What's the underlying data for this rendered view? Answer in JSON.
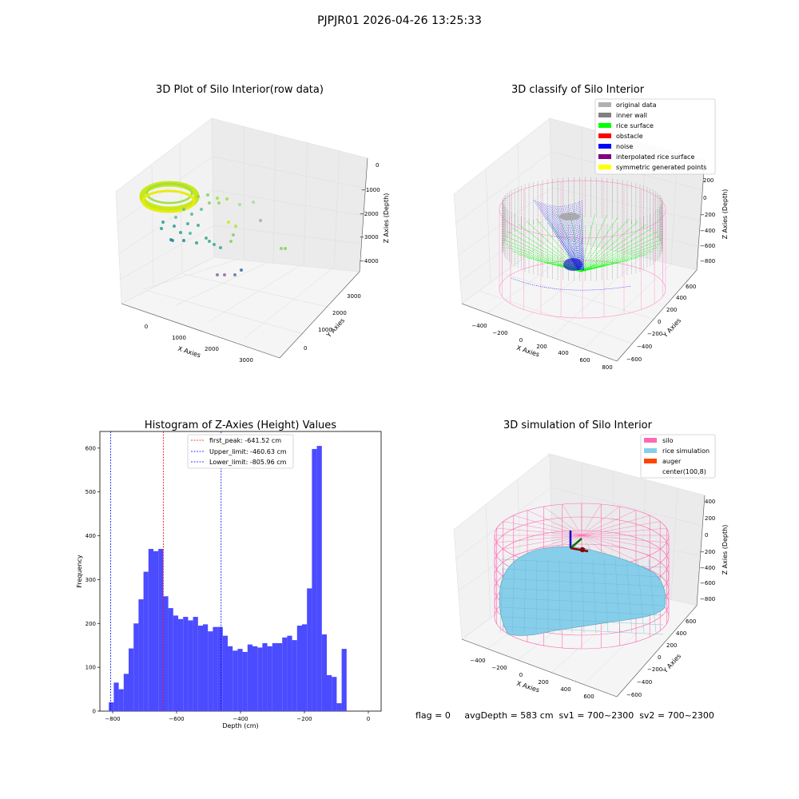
{
  "suptitle": "PJPJR01 2026-04-26 13:25:33",
  "status_line": "flag = 0     avgDepth = 583 cm  sv1 = 700~2300  sv2 = 700~2300",
  "colors": {
    "hist_bar": "#4b4bff",
    "first_peak": "#ff0000",
    "limits": "#0000ff",
    "silo": "#ff69b4",
    "rice_sim": "#87ceeb",
    "auger": "#ff4500",
    "grey": "#b0b0b0",
    "inner_wall": "#808080",
    "rice_surface": "#00ff00",
    "obstacle": "#ff0000",
    "noise": "#0000ff",
    "interp": "#800080",
    "symmetric": "#ffff00"
  },
  "panels": {
    "raw": {
      "title": "3D Plot of Silo Interior(row data)",
      "xlabel": "X Axies",
      "ylabel": "Y Axies",
      "zlabel": "Z Axies (Depth)",
      "xticks": [
        "0",
        "1000",
        "2000",
        "3000"
      ],
      "yticks": [
        "0",
        "1000",
        "2000",
        "3000"
      ],
      "zticks": [
        "0",
        "−1000",
        "−2000",
        "−3000",
        "−4000"
      ]
    },
    "classify": {
      "title": "3D classify of Silo Interior",
      "xlabel": "X Axies",
      "ylabel": "Y Axies",
      "zlabel": "Z Axies (Depth)",
      "xticks": [
        "−400",
        "−200",
        "0",
        "200",
        "400",
        "600",
        "800"
      ],
      "yticks": [
        "−600",
        "−400",
        "−200",
        "0",
        "200",
        "400",
        "600"
      ],
      "zticks": [
        "200",
        "0",
        "−200",
        "−400",
        "−600",
        "−800"
      ],
      "legend": [
        "original data",
        "inner wall",
        "rice surface",
        "obstacle",
        "noise",
        "interpolated rice surface",
        "symmetric generated points"
      ]
    },
    "simulation": {
      "title": "3D simulation of Silo Interior",
      "xlabel": "X Axies",
      "ylabel": "Y Axies",
      "zlabel": "Z Axies (Depth)",
      "xticks": [
        "−400",
        "−200",
        "0",
        "200",
        "400",
        "600"
      ],
      "yticks": [
        "−600",
        "−400",
        "−200",
        "0",
        "200",
        "400",
        "600"
      ],
      "zticks": [
        "400",
        "200",
        "0",
        "−200",
        "−400",
        "−600",
        "−800"
      ],
      "legend": [
        "silo",
        "rice simulation",
        "auger",
        "center(100,8)"
      ]
    }
  },
  "chart_data": [
    {
      "type": "bar",
      "title": "Histogram of Z-Axies (Height) Values",
      "xlabel": "Depth (cm)",
      "ylabel": "Frequency",
      "xlim": [
        -840,
        40
      ],
      "ylim": [
        0,
        638
      ],
      "xticks": [
        -800,
        -600,
        -400,
        -200,
        0
      ],
      "xtick_labels": [
        "−800",
        "−600",
        "−400",
        "−200",
        "0"
      ],
      "yticks": [
        0,
        100,
        200,
        300,
        400,
        500,
        600
      ],
      "bin_start": -812,
      "bin_width": 15.5,
      "values": [
        20,
        65,
        50,
        85,
        143,
        200,
        255,
        318,
        370,
        365,
        370,
        262,
        235,
        218,
        210,
        215,
        207,
        215,
        195,
        198,
        182,
        192,
        192,
        172,
        148,
        138,
        142,
        135,
        152,
        148,
        145,
        155,
        148,
        155,
        155,
        168,
        172,
        162,
        195,
        198,
        280,
        598,
        605,
        175,
        82,
        78,
        18,
        142
      ],
      "lines": [
        {
          "label": "first_peak: -641.52 cm",
          "x": -641.52,
          "color": "#ff0000"
        },
        {
          "label": "Upper_limit: -460.63 cm",
          "x": -460.63,
          "color": "#0000ff"
        },
        {
          "label": "Lower_limit: -805.96 cm",
          "x": -805.96,
          "color": "#0000ff"
        }
      ],
      "legend_position": "upper center"
    }
  ]
}
